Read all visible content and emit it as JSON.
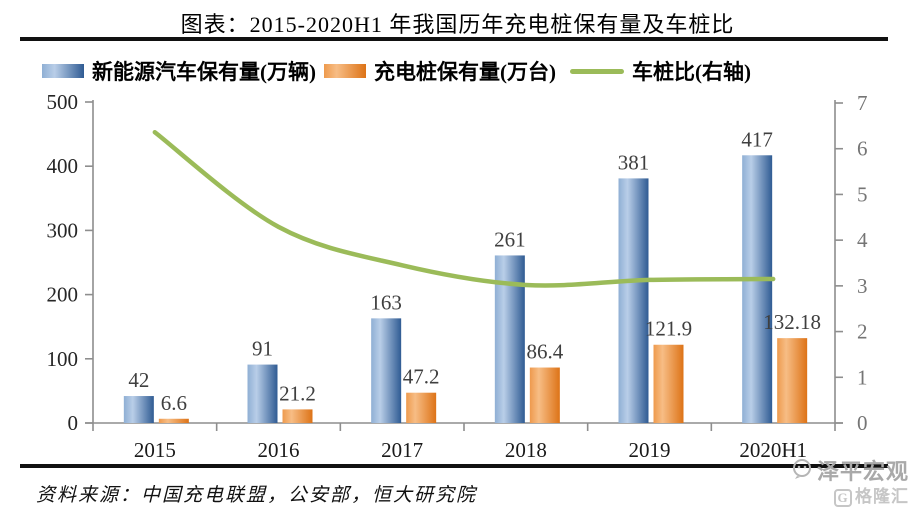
{
  "page": {
    "title": "图表：2015-2020H1 年我国历年充电桩保有量及车桩比",
    "footer": "资料来源：中国充电联盟，公安部，恒大研究院",
    "watermark": {
      "brand1": "泽平宏观",
      "glogo": "G",
      "brand2": "格隆汇"
    }
  },
  "legend": {
    "nev": "新能源汽车保有量(万辆)",
    "pile": "充电桩保有量(万台)",
    "ratio": "车桩比(右轴)"
  },
  "chart_data": {
    "type": "bar",
    "subtype": "bar+line combo, dual axis",
    "title": "图表：2015-2020H1 年我国历年充电桩保有量及车桩比",
    "categories": [
      "2015",
      "2016",
      "2017",
      "2018",
      "2019",
      "2020H1"
    ],
    "series": [
      {
        "name": "新能源汽车保有量(万辆)",
        "type": "bar",
        "axis": "left",
        "values": [
          42,
          91,
          163,
          261,
          381,
          417
        ],
        "data_labels": [
          "42",
          "91",
          "163",
          "261",
          "381",
          "417"
        ],
        "color": "#4f81bd",
        "gradient": [
          "#8fafd4",
          "#b9cee8",
          "#2f5b93"
        ]
      },
      {
        "name": "充电桩保有量(万台)",
        "type": "bar",
        "axis": "left",
        "values": [
          6.6,
          21.2,
          47.2,
          86.4,
          121.9,
          132.18
        ],
        "data_labels": [
          "6.6",
          "21.2",
          "47.2",
          "86.4",
          "121.9",
          "132.18"
        ],
        "color": "#f79646",
        "gradient": [
          "#ee9a4d",
          "#f7bd85",
          "#dd7317"
        ]
      },
      {
        "name": "车桩比(右轴)",
        "type": "line",
        "axis": "right",
        "values": [
          6.36,
          4.29,
          3.45,
          3.02,
          3.13,
          3.15
        ],
        "color": "#9bbb59"
      }
    ],
    "left_axis": {
      "min": 0,
      "max": 500,
      "ticks": [
        0,
        100,
        200,
        300,
        400,
        500
      ]
    },
    "right_axis": {
      "min": 0,
      "max": 7,
      "ticks": [
        0,
        1,
        2,
        3,
        4,
        5,
        6,
        7
      ]
    },
    "legend_position": "top",
    "grid": false,
    "colors": {
      "axis": "#8e8e8e",
      "left_tick_label": "#262626",
      "right_tick_label": "#757575",
      "data_label": "#3f3f3f",
      "category_label": "#1a1a1a"
    }
  }
}
